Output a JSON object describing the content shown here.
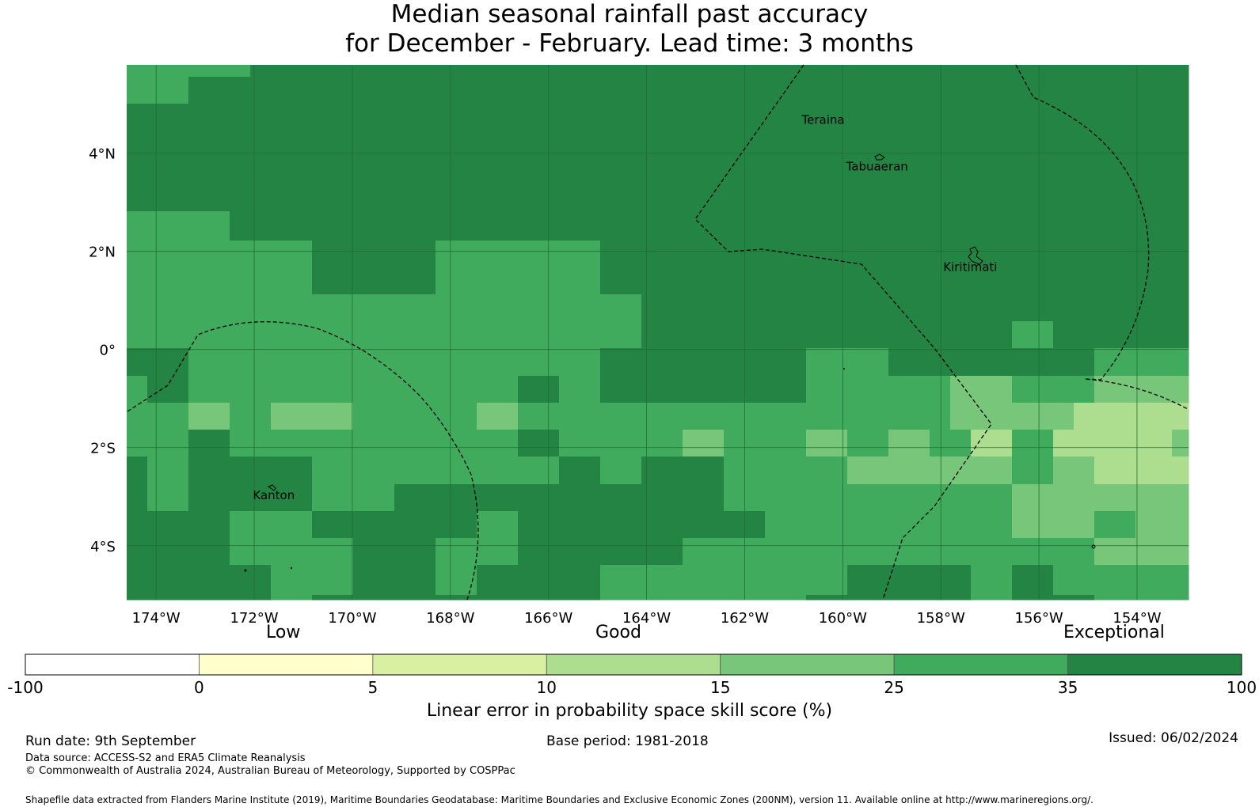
{
  "title": {
    "line1": "Median seasonal rainfall past accuracy",
    "line2": "for December - February. Lead time: 3 months"
  },
  "map": {
    "lat_range": [
      -5.1,
      5.8
    ],
    "lon_range": [
      -174.6,
      -152.95
    ],
    "lat_ticks": [
      {
        "value": 4,
        "label": "4°N"
      },
      {
        "value": 2,
        "label": "2°N"
      },
      {
        "value": 0,
        "label": "0°"
      },
      {
        "value": -2,
        "label": "2°S"
      },
      {
        "value": -4,
        "label": "4°S"
      }
    ],
    "lon_ticks": [
      {
        "value": -174,
        "label": "174°W"
      },
      {
        "value": -172,
        "label": "172°W"
      },
      {
        "value": -170,
        "label": "170°W"
      },
      {
        "value": -168,
        "label": "168°W"
      },
      {
        "value": -166,
        "label": "166°W"
      },
      {
        "value": -164,
        "label": "164°W"
      },
      {
        "value": -162,
        "label": "162°W"
      },
      {
        "value": -160,
        "label": "160°W"
      },
      {
        "value": -158,
        "label": "158°W"
      },
      {
        "value": -156,
        "label": "156°W"
      },
      {
        "value": -154,
        "label": "154°W"
      }
    ],
    "places": [
      {
        "name": "Teraina",
        "lon": -160.4,
        "lat": 4.6
      },
      {
        "name": "Tabuaeran",
        "lon": -159.3,
        "lat": 3.65
      },
      {
        "name": "Kiritimati",
        "lon": -157.4,
        "lat": 1.6
      },
      {
        "name": "Kanton",
        "lon": -171.6,
        "lat": -3.05
      }
    ],
    "grid_value_note": "cell values are skill-score classes 0-6 matching colorbar.bins"
  },
  "colorbar": {
    "categories": [
      "Low",
      "Good",
      "Exceptional"
    ],
    "boundaries": [
      "-100",
      "0",
      "5",
      "10",
      "15",
      "25",
      "35",
      "100"
    ],
    "bins": [
      "#ffffff",
      "#ffffcc",
      "#d9f0a3",
      "#addd8e",
      "#78c679",
      "#41ab5d",
      "#238443"
    ],
    "label": "Linear error in probability space skill score (%)"
  },
  "footer": {
    "run_date": "Run date: 9th September",
    "base_period": "Base period: 1981-2018",
    "issued": "Issued: 06/02/2024",
    "data_source": "Data source: ACCESS-S2 and ERA5 Climate Reanalysis",
    "copyright": "© Commonwealth of Australia 2024, Australian Bureau of Meteorology, Supported by COSPPac",
    "shapefile": "Shapefile data extracted from Flanders Marine Institute (2019), Maritime Boundaries Geodatabase: Maritime Boundaries and Exclusive Economic Zones (200NM), version 11. Available online at http://www.marineregions.org/."
  }
}
